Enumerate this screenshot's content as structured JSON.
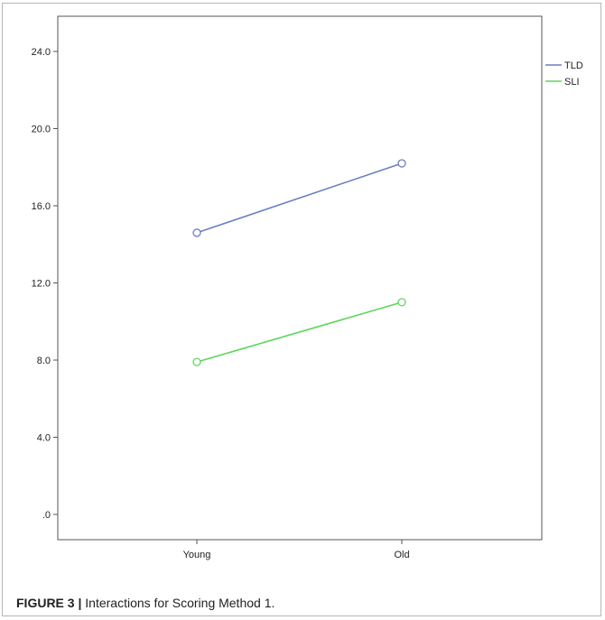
{
  "caption": {
    "figure_label": "FIGURE 3 |",
    "text": "Interactions for Scoring Method 1."
  },
  "chart_data": {
    "type": "line",
    "categories": [
      "Young",
      "Old"
    ],
    "series": [
      {
        "name": "TLD",
        "values": [
          14.6,
          18.2
        ],
        "color": "#6b7fc4"
      },
      {
        "name": "SLI",
        "values": [
          7.9,
          11.0
        ],
        "color": "#5cd65c"
      }
    ],
    "y_ticks": [
      ".0",
      "4.0",
      "8.0",
      "12.0",
      "16.0",
      "20.0",
      "24.0"
    ],
    "ylim": [
      0,
      24
    ],
    "legend_position": "top-right",
    "grid": false
  }
}
